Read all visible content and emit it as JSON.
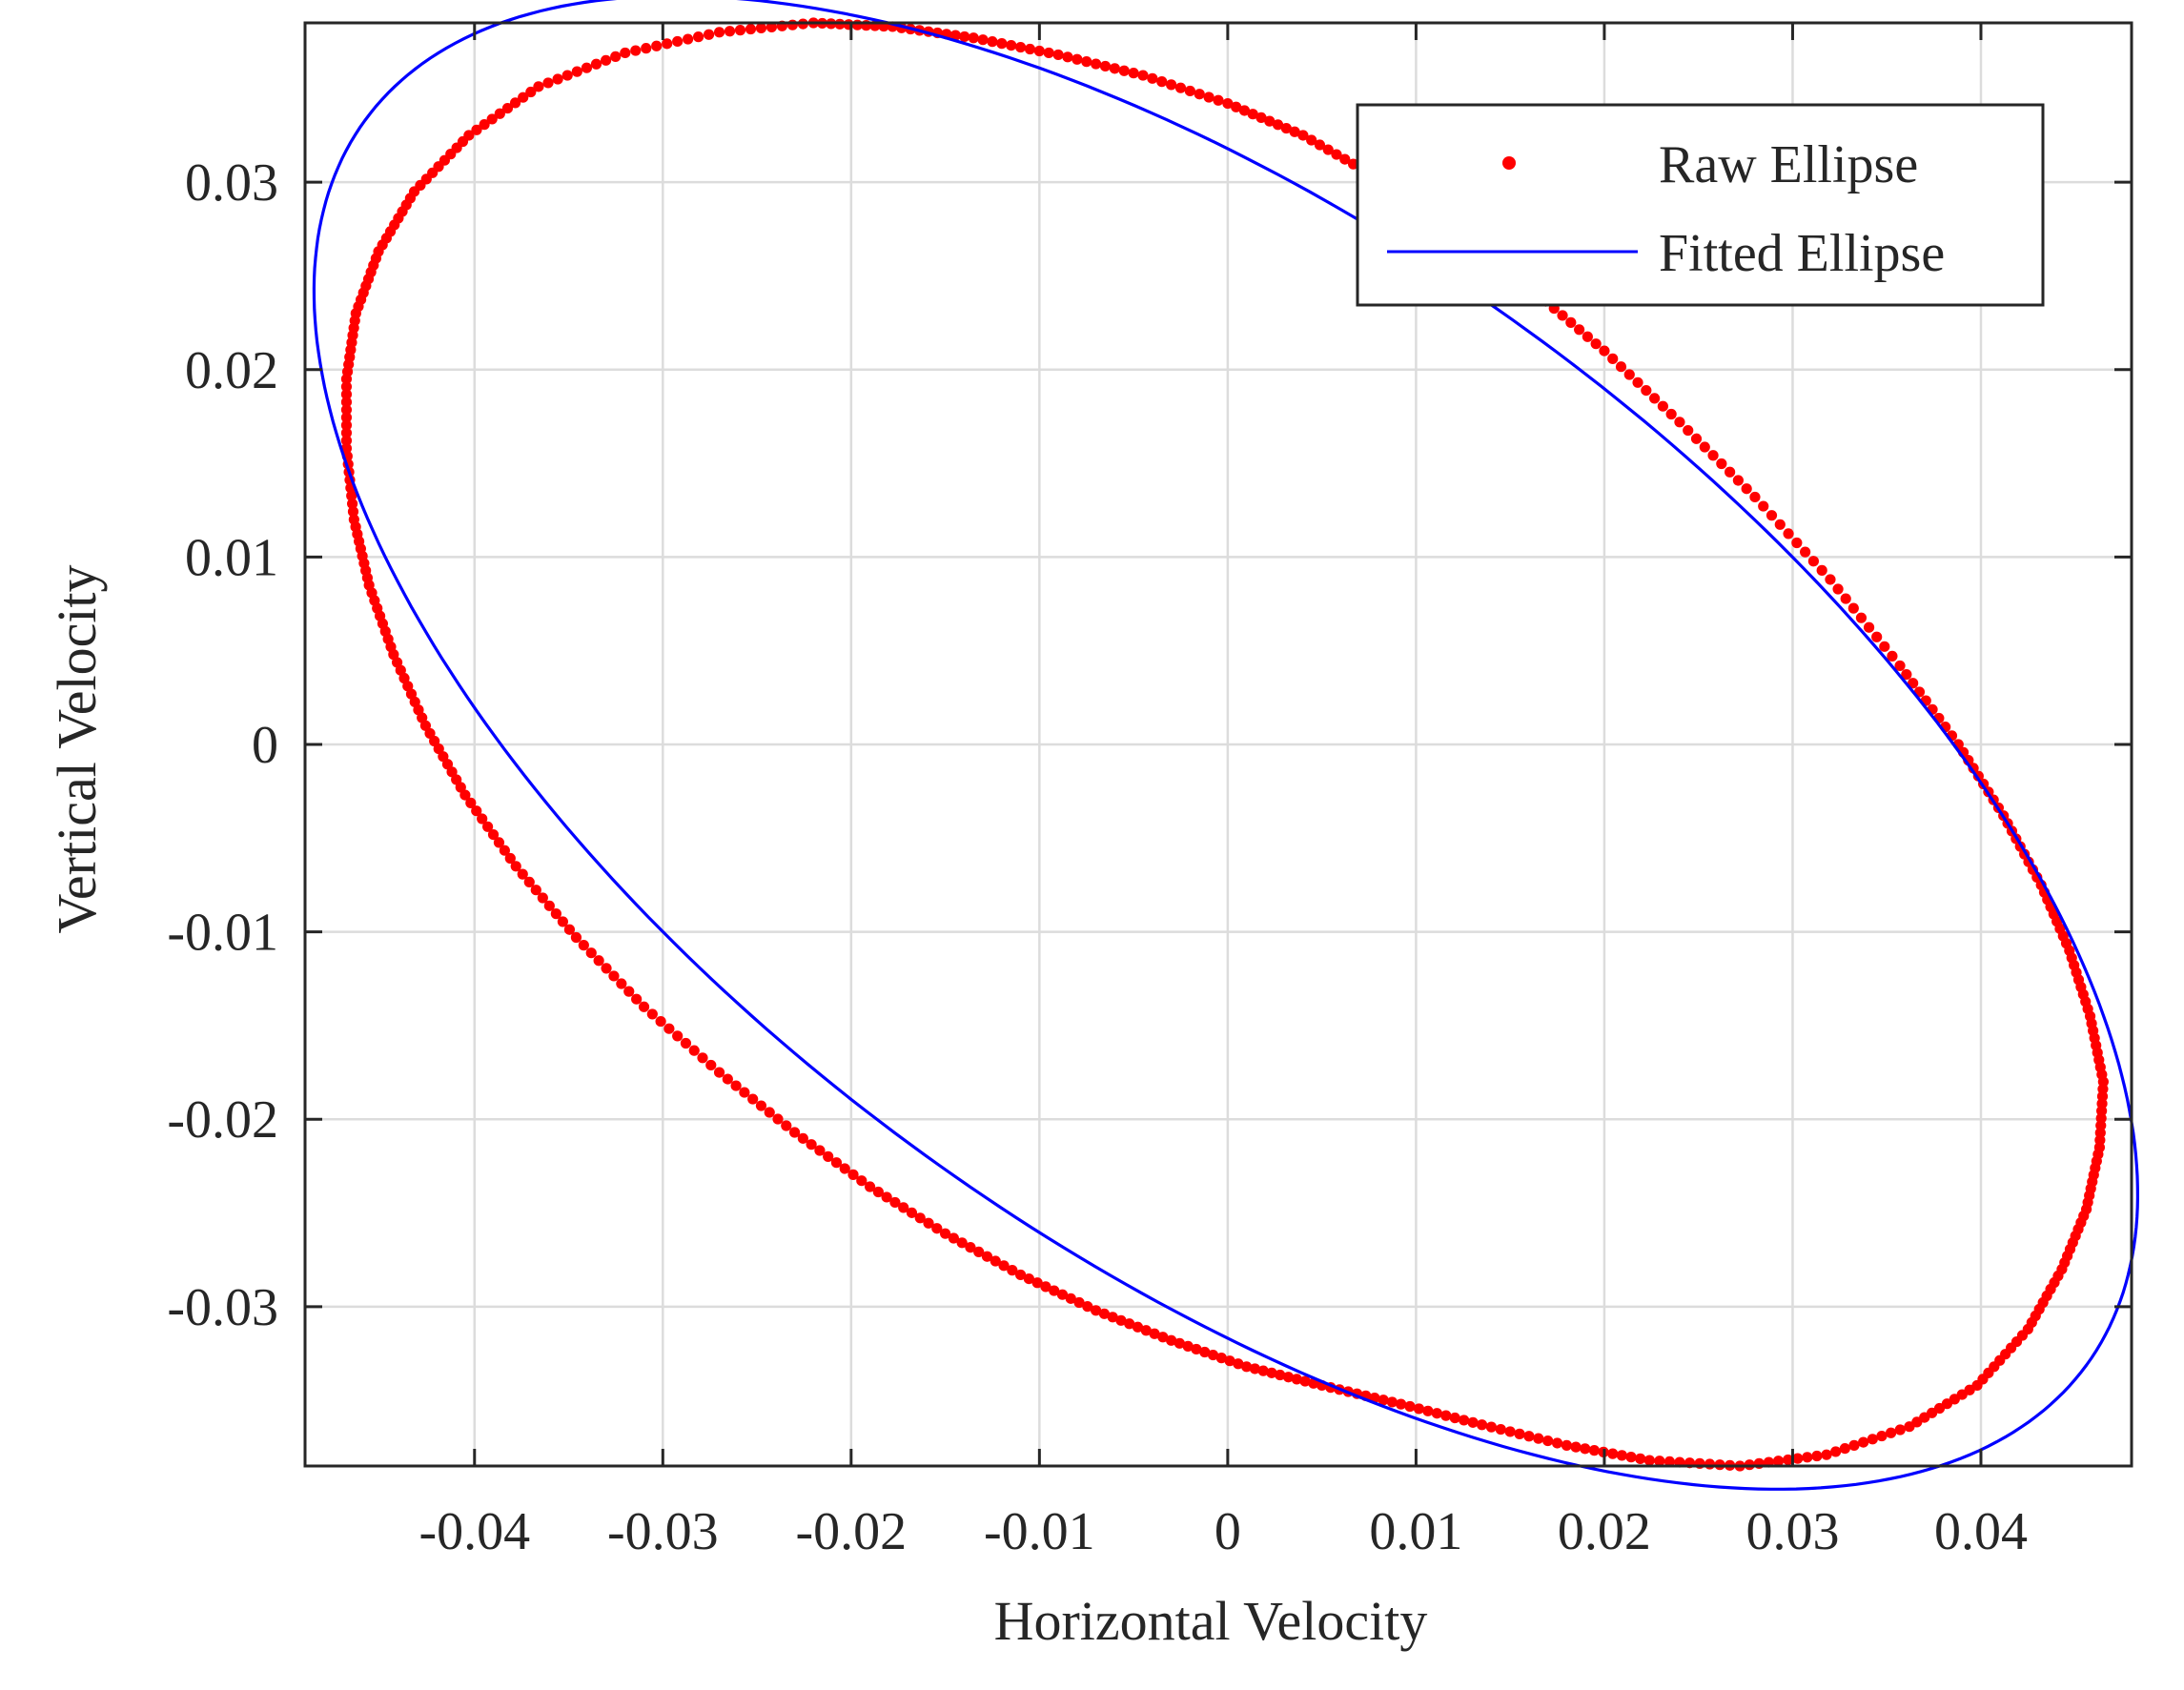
{
  "chart_data": {
    "type": "scatter",
    "title": "",
    "xlabel": "Horizontal Velocity",
    "ylabel": "Vertical Velocity",
    "xlim": [
      -0.049,
      0.048
    ],
    "ylim": [
      -0.0385,
      0.0385
    ],
    "xticks": [
      -0.04,
      -0.03,
      -0.02,
      -0.01,
      0,
      0.01,
      0.02,
      0.03,
      0.04
    ],
    "xtick_labels": [
      "-0.04",
      "-0.03",
      "-0.02",
      "-0.01",
      "0",
      "0.01",
      "0.02",
      "0.03",
      "0.04"
    ],
    "yticks": [
      -0.03,
      -0.02,
      -0.01,
      0,
      0.01,
      0.02,
      0.03
    ],
    "ytick_labels": [
      "-0.03",
      "-0.02",
      "-0.01",
      "0",
      "0.01",
      "0.02",
      "0.03"
    ],
    "grid": true,
    "legend_position": "top-right",
    "series": [
      {
        "name": "Raw Ellipse",
        "kind": "points",
        "color": "#ff0000",
        "points": [
          [
            0.0465,
            -0.018
          ],
          [
            0.0463,
            -0.0215
          ],
          [
            0.0456,
            -0.0248
          ],
          [
            0.0443,
            -0.028
          ],
          [
            0.0425,
            -0.0312
          ],
          [
            0.0398,
            -0.0342
          ],
          [
            0.0362,
            -0.0364
          ],
          [
            0.0318,
            -0.0379
          ],
          [
            0.0272,
            -0.0385
          ],
          [
            0.0224,
            -0.0382
          ],
          [
            0.018,
            -0.0374
          ],
          [
            0.0135,
            -0.0363
          ],
          [
            0.0092,
            -0.0352
          ],
          [
            0.005,
            -0.0342
          ],
          [
            0.001,
            -0.0332
          ],
          [
            -0.003,
            -0.0318
          ],
          [
            -0.007,
            -0.0302
          ],
          [
            -0.011,
            -0.0283
          ],
          [
            -0.015,
            -0.0261
          ],
          [
            -0.019,
            -0.0236
          ],
          [
            -0.023,
            -0.0207
          ],
          [
            -0.027,
            -0.0175
          ],
          [
            -0.031,
            -0.014
          ],
          [
            -0.0346,
            -0.0103
          ],
          [
            -0.0378,
            -0.0065
          ],
          [
            -0.0405,
            -0.0027
          ],
          [
            -0.0426,
            0.001
          ],
          [
            -0.0443,
            0.0048
          ],
          [
            -0.0456,
            0.0085
          ],
          [
            -0.0464,
            0.012
          ],
          [
            -0.0468,
            0.0158
          ],
          [
            -0.0468,
            0.0195
          ],
          [
            -0.0463,
            0.023
          ],
          [
            -0.0451,
            0.0263
          ],
          [
            -0.0432,
            0.0295
          ],
          [
            -0.0403,
            0.0325
          ],
          [
            -0.0366,
            0.0351
          ],
          [
            -0.032,
            0.0369
          ],
          [
            -0.027,
            0.038
          ],
          [
            -0.022,
            0.0385
          ],
          [
            -0.0178,
            0.0383
          ],
          [
            -0.0135,
            0.0377
          ],
          [
            -0.009,
            0.0368
          ],
          [
            -0.0045,
            0.0357
          ],
          [
            0.0,
            0.0342
          ],
          [
            0.004,
            0.0325
          ],
          [
            0.008,
            0.0302
          ],
          [
            0.012,
            0.0275
          ],
          [
            0.016,
            0.0244
          ],
          [
            0.02,
            0.021
          ],
          [
            0.024,
            0.0172
          ],
          [
            0.028,
            0.0132
          ],
          [
            0.032,
            0.0088
          ],
          [
            0.0357,
            0.0042
          ],
          [
            0.0388,
            0.0
          ],
          [
            0.0412,
            -0.0038
          ],
          [
            0.0432,
            -0.0075
          ],
          [
            0.0447,
            -0.011
          ],
          [
            0.0458,
            -0.0145
          ]
        ]
      },
      {
        "name": "Fitted Ellipse",
        "kind": "line",
        "color": "#0000ff",
        "center": [
          -0.0001,
          0.0001
        ],
        "semi_major": 0.0565,
        "semi_minor": 0.0272,
        "rotation_deg": -36
      }
    ]
  }
}
